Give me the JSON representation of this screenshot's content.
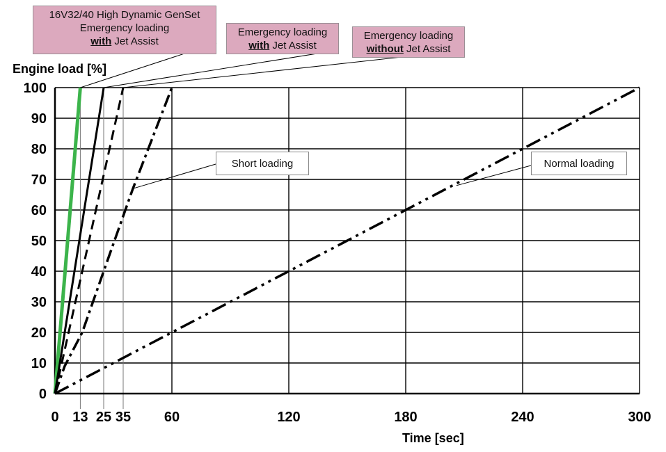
{
  "chart_data": {
    "type": "line",
    "xlabel": "Time [sec]",
    "ylabel": "Engine load [%]",
    "xlim": [
      0,
      300
    ],
    "ylim": [
      0,
      100
    ],
    "x_ticks": [
      0,
      13,
      25,
      35,
      60,
      120,
      180,
      240,
      300
    ],
    "x_major_ticks": [
      0,
      60,
      120,
      180,
      240,
      300
    ],
    "x_minor_ticks": [
      13,
      25,
      35
    ],
    "y_ticks": [
      0,
      10,
      20,
      30,
      40,
      50,
      60,
      70,
      80,
      90,
      100
    ],
    "grid": true,
    "series": [
      {
        "style": "solid-thick",
        "color": "#3cb44b",
        "points": [
          [
            0,
            0
          ],
          [
            13,
            100
          ]
        ]
      },
      {
        "style": "solid",
        "color": "#000000",
        "points": [
          [
            0,
            0
          ],
          [
            25,
            100
          ]
        ]
      },
      {
        "style": "dashed",
        "color": "#000000",
        "points": [
          [
            0,
            0
          ],
          [
            35,
            100
          ]
        ]
      },
      {
        "style": "dash-dot",
        "color": "#000000",
        "points": [
          [
            0,
            0
          ],
          [
            5,
            9
          ],
          [
            14,
            20
          ],
          [
            25,
            40
          ],
          [
            40,
            67
          ],
          [
            60,
            100
          ]
        ]
      },
      {
        "style": "dash-dot-dot",
        "color": "#000000",
        "points": [
          [
            0,
            0
          ],
          [
            300,
            100
          ]
        ]
      }
    ],
    "annotations": {
      "genset": {
        "line1": "16V32/40 High Dynamic GenSet",
        "line2": "Emergency loading",
        "line3_bold": "with",
        "line3_rest": " Jet Assist",
        "target": [
          13,
          100
        ]
      },
      "with_ja": {
        "line1": "Emergency loading",
        "line2_bold": "with",
        "line2_rest": " Jet Assist",
        "target": [
          25,
          100
        ]
      },
      "without_ja": {
        "line1": "Emergency loading",
        "line2_bold": "without",
        "line2_rest": " Jet Assist",
        "target": [
          35,
          100
        ]
      },
      "short": {
        "text": "Short loading",
        "target": [
          40,
          67
        ]
      },
      "normal": {
        "text": "Normal loading",
        "target": [
          206,
          68
        ]
      }
    },
    "colors": {
      "annotation_fill": "#dca9be",
      "grid": "#000000",
      "highlight_series": "#3cb44b"
    }
  }
}
